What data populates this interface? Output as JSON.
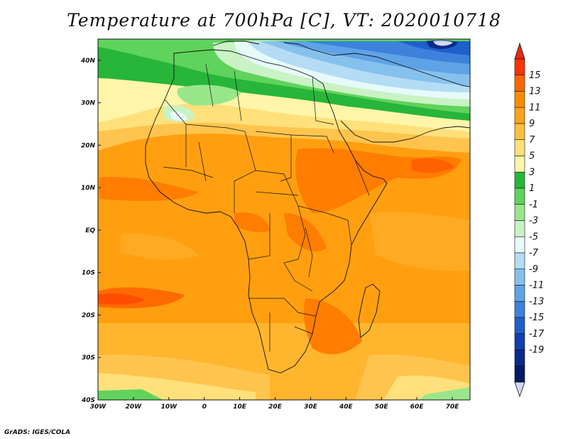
{
  "title": "Temperature at 700hPa [C], VT: 2020010718",
  "credit": "GrADS: IGES/COLA",
  "chart_data": {
    "type": "heatmap",
    "variable": "Temperature at 700hPa",
    "units": "C",
    "valid_time": "2020010718",
    "x_range_deg": [
      -30,
      75
    ],
    "y_range_deg": [
      -40,
      45
    ],
    "x_ticks": [
      {
        "value": -30,
        "label": "30W"
      },
      {
        "value": -20,
        "label": "20W"
      },
      {
        "value": -10,
        "label": "10W"
      },
      {
        "value": 0,
        "label": "0"
      },
      {
        "value": 10,
        "label": "10E"
      },
      {
        "value": 20,
        "label": "20E"
      },
      {
        "value": 30,
        "label": "30E"
      },
      {
        "value": 40,
        "label": "40E"
      },
      {
        "value": 50,
        "label": "50E"
      },
      {
        "value": 60,
        "label": "60E"
      },
      {
        "value": 70,
        "label": "70E"
      }
    ],
    "y_ticks": [
      {
        "value": 40,
        "label": "40N"
      },
      {
        "value": 30,
        "label": "30N"
      },
      {
        "value": 20,
        "label": "20N"
      },
      {
        "value": 10,
        "label": "10N"
      },
      {
        "value": 0,
        "label": "EQ"
      },
      {
        "value": -10,
        "label": "10S"
      },
      {
        "value": -20,
        "label": "20S"
      },
      {
        "value": -30,
        "label": "30S"
      },
      {
        "value": -40,
        "label": "40S"
      }
    ],
    "colorbar": {
      "levels": [
        15,
        13,
        11,
        9,
        7,
        5,
        3,
        1,
        -1,
        -3,
        -5,
        -7,
        -9,
        -11,
        -13,
        -15,
        -17,
        -19
      ],
      "colors": [
        "#ff3300",
        "#ff6600",
        "#ff8c00",
        "#ffa31a",
        "#ffbf40",
        "#ffe07a",
        "#fff5a8",
        "#27b53a",
        "#5fd35b",
        "#99e68a",
        "#c9f2c5",
        "#e6fafa",
        "#b5dcf5",
        "#86c1ee",
        "#5ea3e6",
        "#3c82dc",
        "#1f5fcc",
        "#1040b0",
        "#0a2a8a",
        "#061a66"
      ],
      "over_color": "#e62a14",
      "under_color": "#d5d7f5"
    }
  }
}
